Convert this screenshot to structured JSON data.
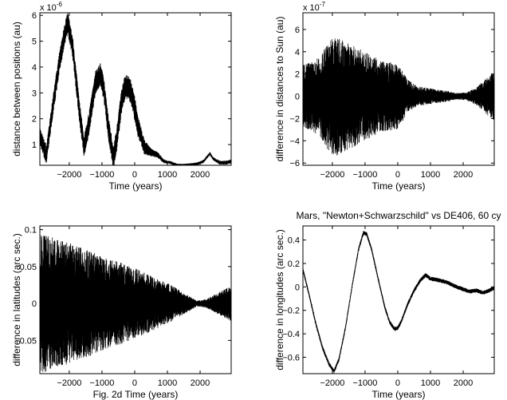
{
  "chart_data": [
    {
      "type": "line",
      "xlabel": "Time (years)",
      "ylabel": "distance between positions (au)",
      "exponent": {
        "base": "x 10",
        "power": "-6"
      },
      "xlim": [
        -2900,
        2950
      ],
      "ylim": [
        0.2,
        6.1
      ],
      "xticks": [
        -2000,
        -1000,
        0,
        1000,
        2000
      ],
      "xtick_labels": [
        "−2000",
        "−1000",
        "0",
        "1000",
        "2000"
      ],
      "yticks": [
        1,
        2,
        3,
        4,
        5,
        6
      ],
      "ytick_labels": [
        "1",
        "2",
        "3",
        "4",
        "5",
        "6"
      ],
      "trend": {
        "x": [
          -2900,
          -2700,
          -2500,
          -2300,
          -2150,
          -2050,
          -1900,
          -1700,
          -1550,
          -1400,
          -1200,
          -1050,
          -950,
          -800,
          -650,
          -550,
          -400,
          -300,
          -200,
          -100,
          0,
          100,
          300,
          500,
          700,
          900,
          1100,
          1300,
          1500,
          1700,
          1900,
          2100,
          2200,
          2300,
          2400,
          2600,
          2800,
          2950
        ],
        "y": [
          1.3,
          0.6,
          2.5,
          4.2,
          5.2,
          5.7,
          4.8,
          2.4,
          0.9,
          1.8,
          3.4,
          3.7,
          3.2,
          1.6,
          0.5,
          1.2,
          2.7,
          3.2,
          3.3,
          3.0,
          2.4,
          1.7,
          0.9,
          0.7,
          0.6,
          0.35,
          0.3,
          0.2,
          0.2,
          0.22,
          0.25,
          0.35,
          0.5,
          0.65,
          0.45,
          0.3,
          0.3,
          0.35
        ]
      },
      "amp": {
        "x": [
          -2900,
          -2000,
          -1000,
          -300,
          0,
          500,
          1000,
          2000,
          2950
        ],
        "y": [
          0.35,
          0.45,
          0.45,
          0.5,
          0.5,
          0.15,
          0.06,
          0.06,
          0.08
        ]
      }
    },
    {
      "type": "line",
      "xlabel": "Time (years)",
      "ylabel": "difference in distances to Sun (au)",
      "exponent": {
        "base": "x 10",
        "power": "-7"
      },
      "xlim": [
        -2900,
        2950
      ],
      "ylim": [
        -6.2,
        7.5
      ],
      "xticks": [
        -2000,
        -1000,
        0,
        1000,
        2000
      ],
      "xtick_labels": [
        "−2000",
        "−1000",
        "0",
        "1000",
        "2000"
      ],
      "yticks": [
        -6,
        -4,
        -2,
        0,
        2,
        4,
        6
      ],
      "ytick_labels": [
        "−6",
        "−4",
        "−2",
        "0",
        "2",
        "4",
        "6"
      ],
      "trend": {
        "x": [
          -2900,
          2950
        ],
        "y": [
          0,
          0
        ]
      },
      "amp": {
        "x": [
          -2900,
          -2400,
          -2000,
          -1500,
          -1000,
          -500,
          0,
          300,
          600,
          1000,
          1500,
          1800,
          2100,
          2400,
          2700,
          2950
        ],
        "y": [
          2.8,
          3.5,
          5.5,
          4.8,
          4.0,
          3.2,
          3.0,
          1.5,
          0.9,
          0.7,
          0.5,
          0.3,
          0.35,
          0.8,
          1.6,
          2.2
        ]
      }
    },
    {
      "type": "line",
      "xlabel": "Fig. 2d        Time (years)",
      "ylabel": "difference in latitudes (arc sec.)",
      "xlim": [
        -2900,
        2950
      ],
      "ylim": [
        -0.095,
        0.105
      ],
      "xticks": [
        -2000,
        -1000,
        0,
        1000,
        2000
      ],
      "xtick_labels": [
        "−2000",
        "−1000",
        "0",
        "1000",
        "2000"
      ],
      "yticks": [
        -0.05,
        0,
        0.05,
        0.1
      ],
      "ytick_labels": [
        "−0.05",
        "0",
        "0.05",
        "0.1"
      ],
      "trend": {
        "x": [
          -2900,
          2950
        ],
        "y": [
          0,
          0
        ]
      },
      "amp": {
        "x": [
          -2900,
          -2000,
          -1000,
          0,
          1000,
          1900,
          2200,
          2600,
          2950
        ],
        "y": [
          0.095,
          0.082,
          0.065,
          0.048,
          0.028,
          0.004,
          0.006,
          0.016,
          0.024
        ]
      }
    },
    {
      "type": "line",
      "title": "Mars, \"Newton+Schwarzschild\" vs DE406, 60 cy",
      "xlabel": "Time (years)",
      "ylabel": "difference in longitudes (arc sec.)",
      "xlim": [
        -2900,
        2950
      ],
      "ylim": [
        -0.74,
        0.52
      ],
      "xticks": [
        -2000,
        -1000,
        0,
        1000,
        2000
      ],
      "xtick_labels": [
        "−2000",
        "−1000",
        "0",
        "1000",
        "2000"
      ],
      "yticks": [
        -0.6,
        -0.4,
        -0.2,
        0,
        0.2,
        0.4
      ],
      "ytick_labels": [
        "−0.6",
        "−0.4",
        "−0.2",
        "0",
        "0.2",
        "0.4"
      ],
      "trend": {
        "x": [
          -2900,
          -2700,
          -2500,
          -2300,
          -2100,
          -1950,
          -1800,
          -1600,
          -1400,
          -1200,
          -1050,
          -950,
          -800,
          -600,
          -400,
          -250,
          -100,
          0,
          100,
          300,
          500,
          700,
          850,
          1000,
          1200,
          1500,
          1800,
          2000,
          2200,
          2400,
          2600,
          2800,
          2950
        ],
        "y": [
          0.15,
          -0.08,
          -0.32,
          -0.52,
          -0.66,
          -0.72,
          -0.62,
          -0.35,
          0.0,
          0.32,
          0.46,
          0.45,
          0.32,
          0.07,
          -0.17,
          -0.3,
          -0.36,
          -0.35,
          -0.3,
          -0.15,
          -0.03,
          0.06,
          0.1,
          0.07,
          0.06,
          0.04,
          0.0,
          -0.02,
          -0.04,
          -0.03,
          -0.05,
          -0.03,
          -0.01
        ]
      },
      "amp": {
        "x": [
          -2900,
          2950
        ],
        "y": [
          0.018,
          0.018
        ]
      }
    }
  ]
}
